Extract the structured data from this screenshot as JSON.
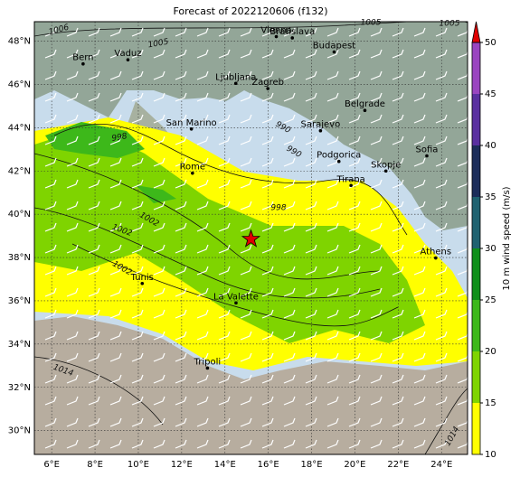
{
  "title": "Forecast of 2022120606 (f132)",
  "map": {
    "xlim": [
      5.2,
      25.2
    ],
    "ylim": [
      28.9,
      48.9
    ],
    "xticks": [
      {
        "value": 6,
        "label": "6°E"
      },
      {
        "value": 8,
        "label": "8°E"
      },
      {
        "value": 10,
        "label": "10°E"
      },
      {
        "value": 12,
        "label": "12°E"
      },
      {
        "value": 14,
        "label": "14°E"
      },
      {
        "value": 16,
        "label": "16°E"
      },
      {
        "value": 18,
        "label": "18°E"
      },
      {
        "value": 20,
        "label": "20°E"
      },
      {
        "value": 22,
        "label": "22°E"
      },
      {
        "value": 24,
        "label": "24°E"
      }
    ],
    "yticks": [
      {
        "value": 30,
        "label": "30°N"
      },
      {
        "value": 32,
        "label": "32°N"
      },
      {
        "value": 34,
        "label": "34°N"
      },
      {
        "value": 36,
        "label": "36°N"
      },
      {
        "value": 38,
        "label": "38°N"
      },
      {
        "value": 40,
        "label": "40°N"
      },
      {
        "value": 42,
        "label": "42°N"
      },
      {
        "value": 44,
        "label": "44°N"
      },
      {
        "value": 46,
        "label": "46°N"
      },
      {
        "value": 48,
        "label": "48°N"
      }
    ],
    "grid": true,
    "cities": [
      {
        "name": "Bern",
        "lon": 7.45,
        "lat": 46.95
      },
      {
        "name": "Vaduz",
        "lon": 9.52,
        "lat": 47.14
      },
      {
        "name": "Vienna",
        "lon": 16.37,
        "lat": 48.21
      },
      {
        "name": "Bratislava",
        "lon": 17.11,
        "lat": 48.15
      },
      {
        "name": "Budapest",
        "lon": 19.04,
        "lat": 47.5
      },
      {
        "name": "Ljubljana",
        "lon": 14.5,
        "lat": 46.05
      },
      {
        "name": "Zagreb",
        "lon": 15.98,
        "lat": 45.81
      },
      {
        "name": "Belgrade",
        "lon": 20.46,
        "lat": 44.8
      },
      {
        "name": "San Marino",
        "lon": 12.45,
        "lat": 43.94
      },
      {
        "name": "Sarajevo",
        "lon": 18.41,
        "lat": 43.86
      },
      {
        "name": "Rome",
        "lon": 12.5,
        "lat": 41.9
      },
      {
        "name": "Podgorica",
        "lon": 19.26,
        "lat": 42.44
      },
      {
        "name": "Skopje",
        "lon": 21.43,
        "lat": 42.0
      },
      {
        "name": "Sofia",
        "lon": 23.32,
        "lat": 42.7
      },
      {
        "name": "Tirana",
        "lon": 19.82,
        "lat": 41.33
      },
      {
        "name": "Athens",
        "lon": 23.73,
        "lat": 37.98
      },
      {
        "name": "Tunis",
        "lon": 10.18,
        "lat": 36.8
      },
      {
        "name": "La Valette",
        "lon": 14.51,
        "lat": 35.9
      },
      {
        "name": "Tripoli",
        "lon": 13.19,
        "lat": 32.89
      }
    ],
    "marker": {
      "lon": 15.2,
      "lat": 38.85,
      "color": "#e00000"
    },
    "isobar_labels": [
      "1006",
      "1005",
      "1005",
      "1005",
      "998",
      "990",
      "998",
      "990",
      "1002",
      "1002",
      "1002",
      "1014",
      "1014"
    ]
  },
  "colorbar": {
    "label": "10 m wind speed (m/s)",
    "clim": [
      10,
      50
    ],
    "ticks": [
      10,
      15,
      20,
      25,
      30,
      35,
      40,
      45,
      50
    ],
    "levels": [
      10,
      15,
      20,
      25,
      30,
      35,
      40,
      45,
      50
    ],
    "colors": [
      "#ffff00",
      "#7fd400",
      "#3db81a",
      "#0f8f1a",
      "#1f6270",
      "#1c2d5a",
      "#5a30a0",
      "#9a45c0"
    ],
    "extend_color": "#e00000"
  }
}
